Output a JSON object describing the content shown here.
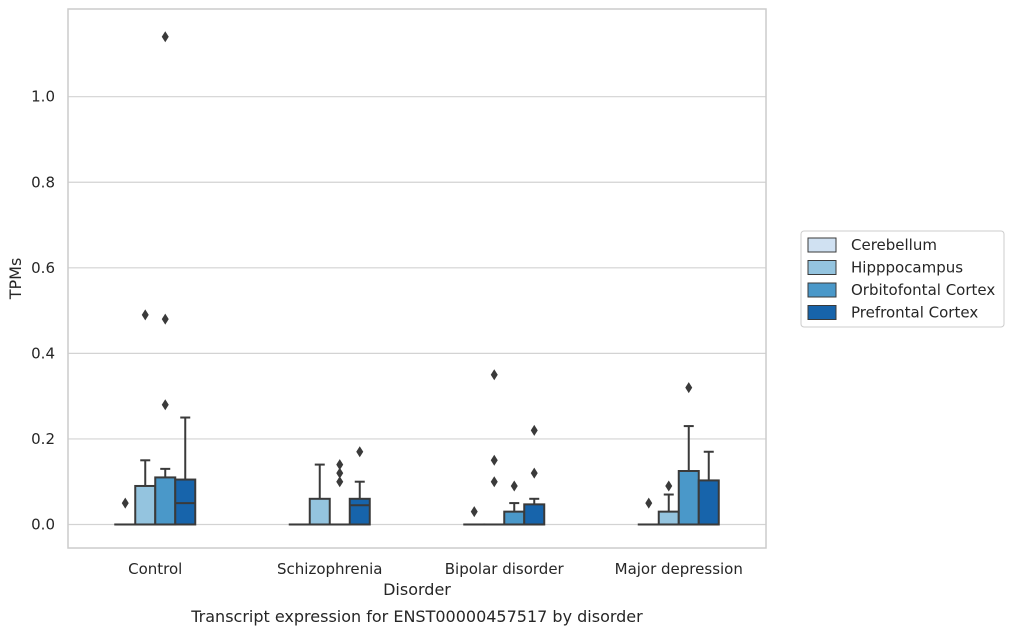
{
  "chart_data": {
    "type": "box",
    "caption": "Transcript expression for ENST00000457517 by disorder",
    "xlabel": "Disorder",
    "ylabel": "TPMs",
    "ylim": [
      -0.055,
      1.205
    ],
    "yticks": [
      "0.0",
      "0.2",
      "0.4",
      "0.6",
      "0.8",
      "1.0"
    ],
    "ytick_values": [
      0.0,
      0.2,
      0.4,
      0.6,
      0.8,
      1.0
    ],
    "grid": "horizontal",
    "legend_position": "right",
    "categories": [
      "Control",
      "Schizophrenia",
      "Bipolar disorder",
      "Major depression"
    ],
    "series": [
      {
        "name": "Cerebellum",
        "color": "#d0e1f2",
        "boxes": [
          {
            "q1": 0.0,
            "median": 0.0,
            "q3": 0.0,
            "whisker_low": 0.0,
            "whisker_high": 0.0,
            "outliers": [
              0.05
            ]
          },
          {
            "q1": 0.0,
            "median": 0.0,
            "q3": 0.0,
            "whisker_low": 0.0,
            "whisker_high": 0.0,
            "outliers": []
          },
          {
            "q1": 0.0,
            "median": 0.0,
            "q3": 0.0,
            "whisker_low": 0.0,
            "whisker_high": 0.0,
            "outliers": [
              0.03
            ]
          },
          {
            "q1": 0.0,
            "median": 0.0,
            "q3": 0.0,
            "whisker_low": 0.0,
            "whisker_high": 0.0,
            "outliers": [
              0.05
            ]
          }
        ]
      },
      {
        "name": "Hipppocampus",
        "color": "#94c4df",
        "boxes": [
          {
            "q1": 0.0,
            "median": 0.0,
            "q3": 0.09,
            "whisker_low": 0.0,
            "whisker_high": 0.15,
            "outliers": [
              0.49
            ]
          },
          {
            "q1": 0.0,
            "median": 0.0,
            "q3": 0.06,
            "whisker_low": 0.0,
            "whisker_high": 0.14,
            "outliers": []
          },
          {
            "q1": 0.0,
            "median": 0.0,
            "q3": 0.0,
            "whisker_low": 0.0,
            "whisker_high": 0.0,
            "outliers": [
              0.35,
              0.15,
              0.1
            ]
          },
          {
            "q1": 0.0,
            "median": 0.0,
            "q3": 0.03,
            "whisker_low": 0.0,
            "whisker_high": 0.07,
            "outliers": [
              0.09
            ]
          }
        ]
      },
      {
        "name": "Orbitofontal Cortex",
        "color": "#4a98c9",
        "boxes": [
          {
            "q1": 0.0,
            "median": 0.0,
            "q3": 0.11,
            "whisker_low": 0.0,
            "whisker_high": 0.13,
            "outliers": [
              1.14,
              0.48,
              0.28
            ]
          },
          {
            "q1": 0.0,
            "median": 0.0,
            "q3": 0.0,
            "whisker_low": 0.0,
            "whisker_high": 0.0,
            "outliers": [
              0.14,
              0.12,
              0.1
            ]
          },
          {
            "q1": 0.0,
            "median": 0.0,
            "q3": 0.03,
            "whisker_low": 0.0,
            "whisker_high": 0.05,
            "outliers": [
              0.09
            ]
          },
          {
            "q1": 0.0,
            "median": 0.0,
            "q3": 0.125,
            "whisker_low": 0.0,
            "whisker_high": 0.23,
            "outliers": [
              0.32
            ]
          }
        ]
      },
      {
        "name": "Prefrontal Cortex",
        "color": "#1764ab",
        "boxes": [
          {
            "q1": 0.0,
            "median": 0.05,
            "q3": 0.105,
            "whisker_low": 0.0,
            "whisker_high": 0.25,
            "outliers": []
          },
          {
            "q1": 0.0,
            "median": 0.045,
            "q3": 0.06,
            "whisker_low": 0.0,
            "whisker_high": 0.1,
            "outliers": [
              0.17
            ]
          },
          {
            "q1": 0.0,
            "median": 0.0,
            "q3": 0.047,
            "whisker_low": 0.0,
            "whisker_high": 0.06,
            "outliers": [
              0.22,
              0.12
            ]
          },
          {
            "q1": 0.0,
            "median": 0.0,
            "q3": 0.103,
            "whisker_low": 0.0,
            "whisker_high": 0.17,
            "outliers": []
          }
        ]
      }
    ],
    "colors": {
      "grid": "#d3d3d3",
      "spine": "#cccccc",
      "box_edge": "#3a3a3a",
      "flier": "#3a3a3a"
    }
  }
}
